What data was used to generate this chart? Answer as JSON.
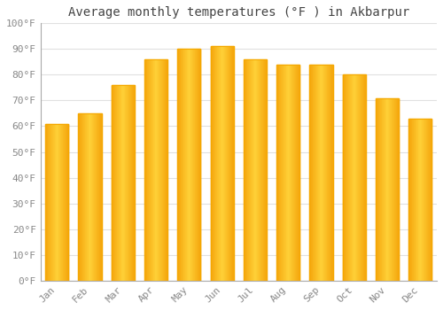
{
  "title": "Average monthly temperatures (°F ) in Akbarpur",
  "months": [
    "Jan",
    "Feb",
    "Mar",
    "Apr",
    "May",
    "Jun",
    "Jul",
    "Aug",
    "Sep",
    "Oct",
    "Nov",
    "Dec"
  ],
  "values": [
    61,
    65,
    76,
    86,
    90,
    91,
    86,
    84,
    84,
    80,
    71,
    63
  ],
  "bar_color_center": "#FFD04A",
  "bar_color_edge": "#F5A800",
  "bar_gradient_left": "#F5A800",
  "bar_gradient_right": "#F5A800",
  "background_color": "#FFFFFF",
  "grid_color": "#E0E0E0",
  "ylim": [
    0,
    100
  ],
  "ytick_step": 10,
  "title_fontsize": 10,
  "tick_fontsize": 8,
  "font_family": "monospace"
}
